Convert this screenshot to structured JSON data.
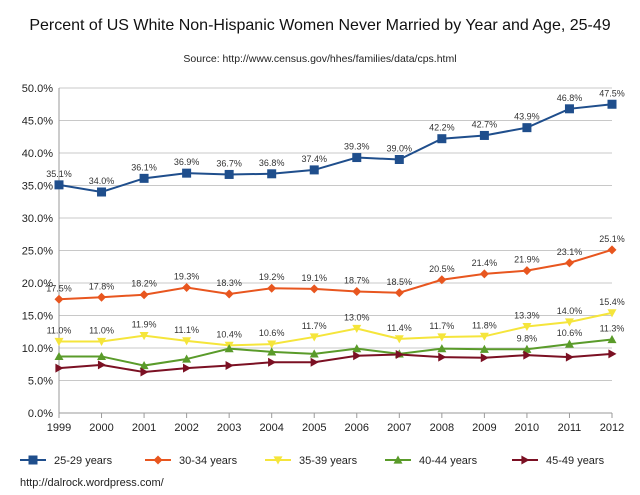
{
  "chart_data": {
    "type": "line",
    "title": "Percent of US White Non-Hispanic Women Never Married by Year and Age, 25-49",
    "subtitle": "Source:  http://www.census.gov/hhes/families/data/cps.html",
    "footer": "http://dalrock.wordpress.com/",
    "x": [
      "1999",
      "2000",
      "2001",
      "2002",
      "2003",
      "2004",
      "2005",
      "2006",
      "2007",
      "2008",
      "2009",
      "2010",
      "2011",
      "2012"
    ],
    "ylim": [
      0,
      50
    ],
    "yticks": [
      "0.0%",
      "5.0%",
      "10.0%",
      "15.0%",
      "20.0%",
      "25.0%",
      "30.0%",
      "35.0%",
      "40.0%",
      "45.0%",
      "50.0%"
    ],
    "grid": true,
    "legend_position": "bottom",
    "series": [
      {
        "name": "25-29 years",
        "color": "#1f4e8c",
        "marker": "square",
        "values": [
          35.1,
          34.0,
          36.1,
          36.9,
          36.7,
          36.8,
          37.4,
          39.3,
          39.0,
          42.2,
          42.7,
          43.9,
          46.8,
          47.5
        ],
        "labels": [
          "35.1%",
          "34.0%",
          "36.1%",
          "36.9%",
          "36.7%",
          "36.8%",
          "37.4%",
          "39.3%",
          "39.0%",
          "42.2%",
          "42.7%",
          "43.9%",
          "46.8%",
          "47.5%"
        ]
      },
      {
        "name": "30-34 years",
        "color": "#e8561f",
        "marker": "diamond",
        "values": [
          17.5,
          17.8,
          18.2,
          19.3,
          18.3,
          19.2,
          19.1,
          18.7,
          18.5,
          20.5,
          21.4,
          21.9,
          23.1,
          25.1
        ],
        "labels": [
          "17.5%",
          "17.8%",
          "18.2%",
          "19.3%",
          "18.3%",
          "19.2%",
          "19.1%",
          "18.7%",
          "18.5%",
          "20.5%",
          "21.4%",
          "21.9%",
          "23.1%",
          "25.1%"
        ]
      },
      {
        "name": "35-39 years",
        "color": "#f5e53b",
        "marker": "triangle-down",
        "values": [
          11.0,
          11.0,
          11.9,
          11.1,
          10.4,
          10.6,
          11.7,
          13.0,
          11.4,
          11.7,
          11.8,
          13.3,
          14.0,
          15.4
        ],
        "labels": [
          "11.0%",
          "11.0%",
          "11.9%",
          "11.1%",
          "10.4%",
          "10.6%",
          "11.7%",
          "13.0%",
          "11.4%",
          "11.7%",
          "11.8%",
          "13.3%",
          "14.0%",
          "15.4%"
        ]
      },
      {
        "name": "40-44 years",
        "color": "#5a9b2a",
        "marker": "triangle-up",
        "values": [
          8.7,
          8.7,
          7.3,
          8.3,
          9.9,
          9.4,
          9.1,
          9.9,
          9.1,
          9.9,
          9.8,
          9.8,
          10.6,
          11.3
        ],
        "labels": [
          "",
          "",
          "",
          "",
          "",
          "",
          "",
          "",
          "",
          "",
          "",
          "9.8%",
          "10.6%",
          "11.3%"
        ]
      },
      {
        "name": "45-49 years",
        "color": "#7b1023",
        "marker": "triangle-right",
        "values": [
          6.9,
          7.4,
          6.3,
          6.9,
          7.3,
          7.8,
          7.8,
          8.8,
          9.0,
          8.6,
          8.5,
          8.9,
          8.6,
          9.1
        ],
        "labels": []
      }
    ]
  }
}
